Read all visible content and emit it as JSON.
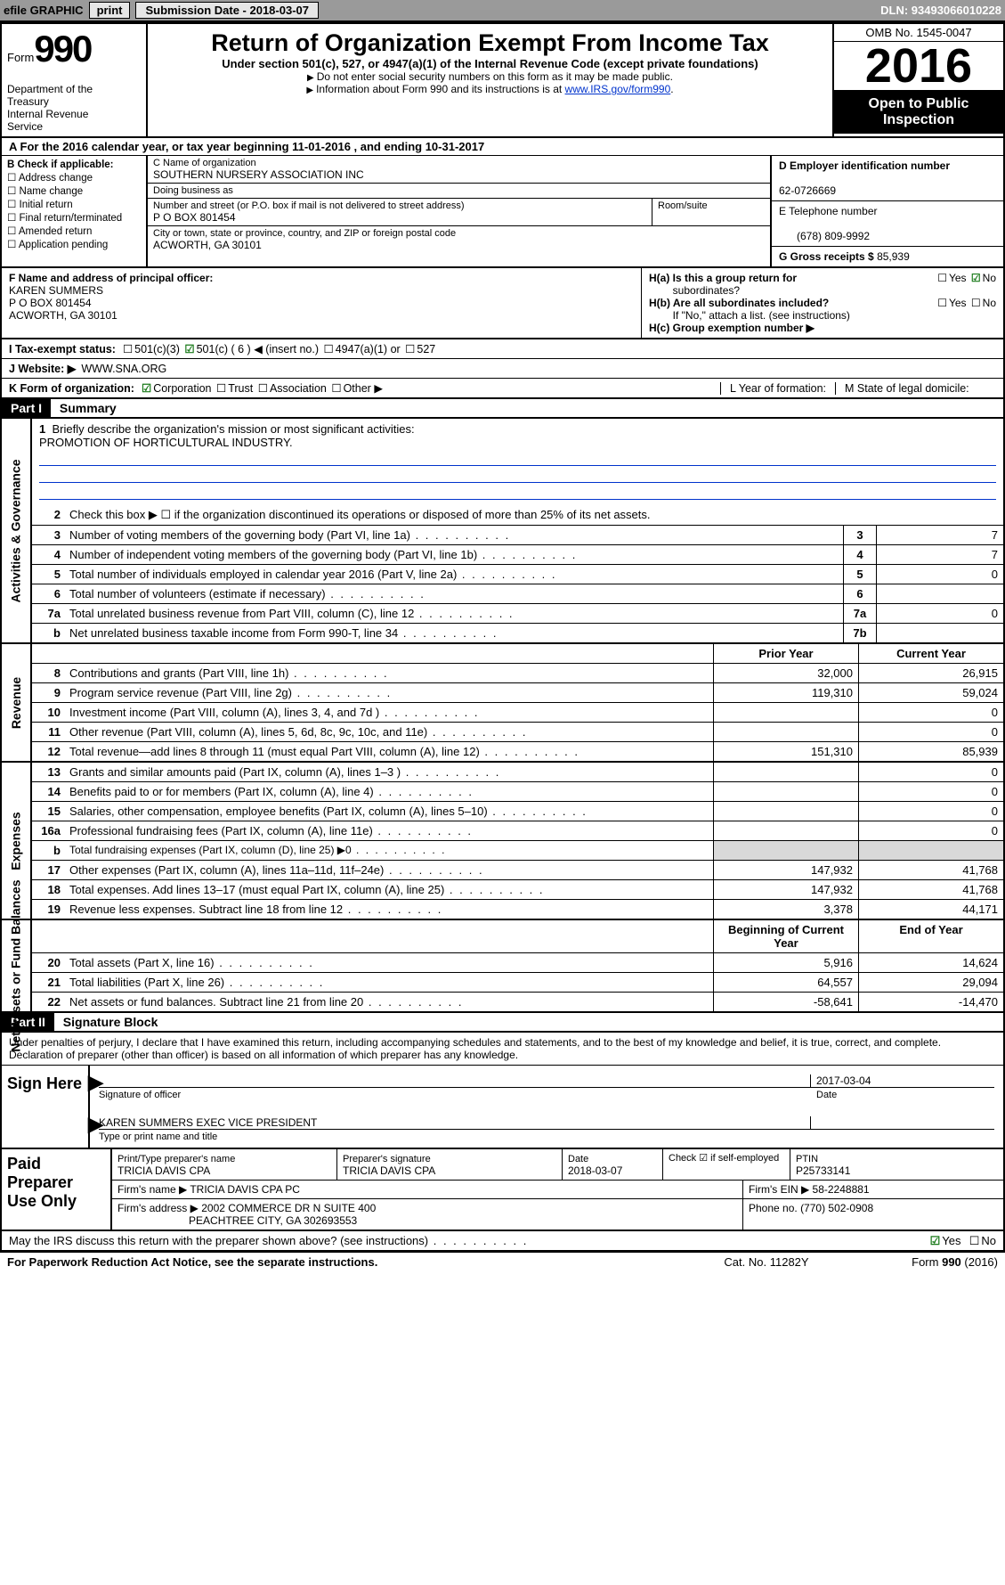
{
  "topbar": {
    "efile": "efile GRAPHIC",
    "print": "print",
    "submission": "Submission Date - 2018-03-07",
    "dln": "DLN: 93493066010228"
  },
  "header": {
    "form_prefix": "Form",
    "form_number": "990",
    "dept1": "Department of the",
    "dept2": "Treasury",
    "dept3": "Internal Revenue",
    "dept4": "Service",
    "title": "Return of Organization Exempt From Income Tax",
    "subtitle": "Under section 501(c), 527, or 4947(a)(1) of the Internal Revenue Code (except private foundations)",
    "note1": "Do not enter social security numbers on this form as it may be made public.",
    "note2_pre": "Information about Form 990 and its instructions is at ",
    "note2_link": "www.IRS.gov/form990",
    "omb": "OMB No. 1545-0047",
    "year": "2016",
    "open1": "Open to Public",
    "open2": "Inspection"
  },
  "row_a": "A  For the 2016 calendar year, or tax year beginning 11-01-2016   , and ending 10-31-2017",
  "col_b": {
    "label": "B Check if applicable:",
    "items": [
      "Address change",
      "Name change",
      "Initial return",
      "Final return/terminated",
      "Amended return",
      "Application pending"
    ]
  },
  "col_c": {
    "name_label": "C Name of organization",
    "name": "SOUTHERN NURSERY ASSOCIATION INC",
    "dba_label": "Doing business as",
    "dba": "",
    "street_label": "Number and street (or P.O. box if mail is not delivered to street address)",
    "street": "P O BOX 801454",
    "room_label": "Room/suite",
    "city_label": "City or town, state or province, country, and ZIP or foreign postal code",
    "city": "ACWORTH, GA  30101"
  },
  "col_d": {
    "ein_label": "D Employer identification number",
    "ein": "62-0726669",
    "phone_label": "E Telephone number",
    "phone": "(678) 809-9992",
    "gross_label": "G Gross receipts $",
    "gross": "85,939"
  },
  "row_f": {
    "label": "F  Name and address of principal officer:",
    "name": "KAREN SUMMERS",
    "addr1": "P O BOX 801454",
    "addr2": "ACWORTH, GA  30101"
  },
  "row_h": {
    "ha": "H(a)  Is this a group return for",
    "ha2": "subordinates?",
    "hb": "H(b)  Are all subordinates included?",
    "hb_note": "If \"No,\" attach a list. (see instructions)",
    "hc": "H(c)  Group exemption number ▶"
  },
  "row_i": {
    "label": "I   Tax-exempt status:",
    "opts": [
      "501(c)(3)",
      "501(c) ( 6 ) ◀ (insert no.)",
      "4947(a)(1) or",
      "527"
    ]
  },
  "row_j": {
    "label": "J   Website: ▶",
    "val": "WWW.SNA.ORG"
  },
  "row_k": {
    "label": "K Form of organization:",
    "opts": [
      "Corporation",
      "Trust",
      "Association",
      "Other ▶"
    ]
  },
  "row_l": {
    "label": "L Year of formation:"
  },
  "row_m": {
    "label": "M State of legal domicile:"
  },
  "part1": {
    "hdr": "Part I",
    "title": "Summary",
    "vlabel_ag": "Activities & Governance",
    "vlabel_rev": "Revenue",
    "vlabel_exp": "Expenses",
    "vlabel_na": "Net Assets or Fund Balances",
    "q1a": "Briefly describe the organization's mission or most significant activities:",
    "q1b": "PROMOTION OF HORTICULTURAL INDUSTRY.",
    "q2": "Check this box ▶ ☐  if the organization discontinued its operations or disposed of more than 25% of its net assets.",
    "lines": [
      {
        "n": "3",
        "t": "Number of voting members of the governing body (Part VI, line 1a)",
        "box": "3",
        "v": "7"
      },
      {
        "n": "4",
        "t": "Number of independent voting members of the governing body (Part VI, line 1b)",
        "box": "4",
        "v": "7"
      },
      {
        "n": "5",
        "t": "Total number of individuals employed in calendar year 2016 (Part V, line 2a)",
        "box": "5",
        "v": "0"
      },
      {
        "n": "6",
        "t": "Total number of volunteers (estimate if necessary)",
        "box": "6",
        "v": ""
      },
      {
        "n": "7a",
        "t": "Total unrelated business revenue from Part VIII, column (C), line 12",
        "box": "7a",
        "v": "0"
      },
      {
        "n": "b",
        "t": "Net unrelated business taxable income from Form 990-T, line 34",
        "box": "7b",
        "v": ""
      }
    ],
    "colhdr_prior": "Prior Year",
    "colhdr_current": "Current Year",
    "revenue": [
      {
        "n": "8",
        "t": "Contributions and grants (Part VIII, line 1h)",
        "p": "32,000",
        "c": "26,915"
      },
      {
        "n": "9",
        "t": "Program service revenue (Part VIII, line 2g)",
        "p": "119,310",
        "c": "59,024"
      },
      {
        "n": "10",
        "t": "Investment income (Part VIII, column (A), lines 3, 4, and 7d )",
        "p": "",
        "c": "0"
      },
      {
        "n": "11",
        "t": "Other revenue (Part VIII, column (A), lines 5, 6d, 8c, 9c, 10c, and 11e)",
        "p": "",
        "c": "0"
      },
      {
        "n": "12",
        "t": "Total revenue—add lines 8 through 11 (must equal Part VIII, column (A), line 12)",
        "p": "151,310",
        "c": "85,939"
      }
    ],
    "expenses": [
      {
        "n": "13",
        "t": "Grants and similar amounts paid (Part IX, column (A), lines 1–3 )",
        "p": "",
        "c": "0"
      },
      {
        "n": "14",
        "t": "Benefits paid to or for members (Part IX, column (A), line 4)",
        "p": "",
        "c": "0"
      },
      {
        "n": "15",
        "t": "Salaries, other compensation, employee benefits (Part IX, column (A), lines 5–10)",
        "p": "",
        "c": "0"
      },
      {
        "n": "16a",
        "t": "Professional fundraising fees (Part IX, column (A), line 11e)",
        "p": "",
        "c": "0"
      },
      {
        "n": "b",
        "t": "Total fundraising expenses (Part IX, column (D), line 25) ▶0",
        "p": "gray",
        "c": "gray"
      },
      {
        "n": "17",
        "t": "Other expenses (Part IX, column (A), lines 11a–11d, 11f–24e)",
        "p": "147,932",
        "c": "41,768"
      },
      {
        "n": "18",
        "t": "Total expenses. Add lines 13–17 (must equal Part IX, column (A), line 25)",
        "p": "147,932",
        "c": "41,768"
      },
      {
        "n": "19",
        "t": "Revenue less expenses. Subtract line 18 from line 12",
        "p": "3,378",
        "c": "44,171"
      }
    ],
    "colhdr_boy": "Beginning of Current Year",
    "colhdr_eoy": "End of Year",
    "netassets": [
      {
        "n": "20",
        "t": "Total assets (Part X, line 16)",
        "p": "5,916",
        "c": "14,624"
      },
      {
        "n": "21",
        "t": "Total liabilities (Part X, line 26)",
        "p": "64,557",
        "c": "29,094"
      },
      {
        "n": "22",
        "t": "Net assets or fund balances. Subtract line 21 from line 20",
        "p": "-58,641",
        "c": "-14,470"
      }
    ]
  },
  "part2": {
    "hdr": "Part II",
    "title": "Signature Block",
    "declaration": "Under penalties of perjury, I declare that I have examined this return, including accompanying schedules and statements, and to the best of my knowledge and belief, it is true, correct, and complete. Declaration of preparer (other than officer) is based on all information of which preparer has any knowledge.",
    "sign_here": "Sign Here",
    "sig_of_officer": "Signature of officer",
    "sig_date": "2017-03-04",
    "date_label": "Date",
    "officer_name": "KAREN SUMMERS  EXEC VICE PRESIDENT",
    "type_label": "Type or print name and title",
    "paid": "Paid Preparer Use Only",
    "prep_name_label": "Print/Type preparer's name",
    "prep_name": "TRICIA DAVIS CPA",
    "prep_sig_label": "Preparer's signature",
    "prep_sig": "TRICIA DAVIS CPA",
    "prep_date_label": "Date",
    "prep_date": "2018-03-07",
    "self_emp": "Check ☑ if self-employed",
    "ptin_label": "PTIN",
    "ptin": "P25733141",
    "firm_name_label": "Firm's name    ▶",
    "firm_name": "TRICIA DAVIS CPA PC",
    "firm_ein_label": "Firm's EIN ▶",
    "firm_ein": "58-2248881",
    "firm_addr_label": "Firm's address ▶",
    "firm_addr1": "2002 COMMERCE DR N SUITE 400",
    "firm_addr2": "PEACHTREE CITY, GA  302693553",
    "firm_phone_label": "Phone no.",
    "firm_phone": "(770) 502-0908",
    "discuss": "May the IRS discuss this return with the preparer shown above? (see instructions)"
  },
  "footer": {
    "left": "For Paperwork Reduction Act Notice, see the separate instructions.",
    "mid": "Cat. No. 11282Y",
    "right": "Form 990 (2016)"
  }
}
